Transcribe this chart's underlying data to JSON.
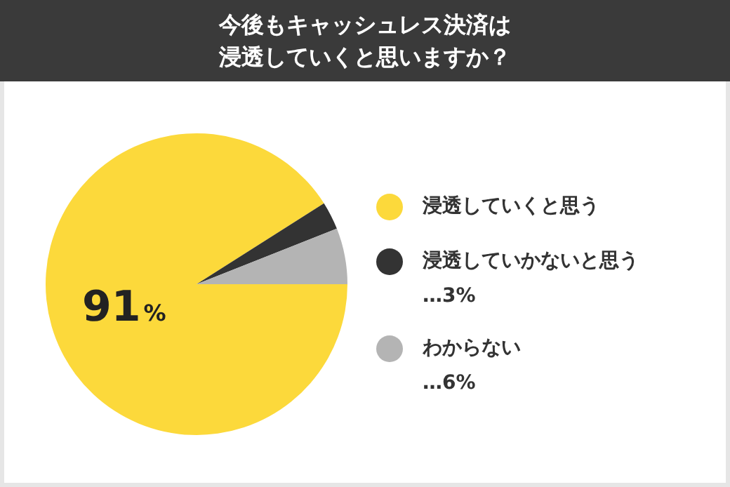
{
  "chart_data": {
    "type": "pie",
    "title": "今後もキャッシュレス決済は浸透していくと思いますか？",
    "categories": [
      "浸透していくと思う",
      "浸透していかないと思う",
      "わからない"
    ],
    "values": [
      91,
      3,
      6
    ],
    "colors": [
      "#fcd93b",
      "#333333",
      "#b4b4b4"
    ],
    "value_labels": [
      "91%",
      "…3%",
      "…6%"
    ],
    "legend": "right"
  }
}
